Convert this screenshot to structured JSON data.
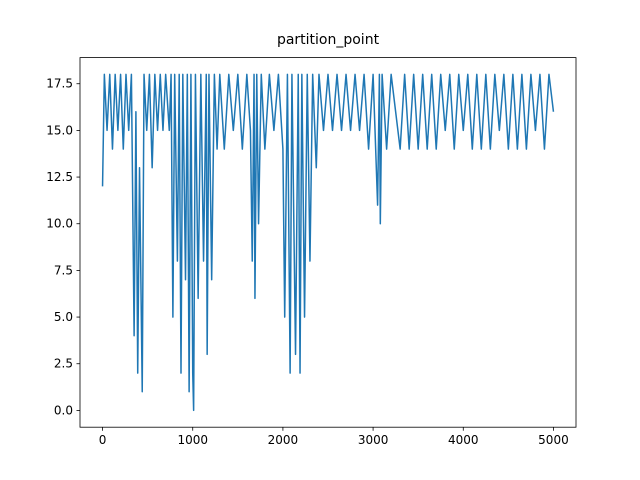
{
  "chart_data": {
    "type": "line",
    "title": "partition_point",
    "x": [
      0,
      20,
      50,
      80,
      110,
      140,
      170,
      200,
      230,
      260,
      290,
      320,
      350,
      370,
      390,
      410,
      440,
      460,
      490,
      520,
      550,
      580,
      610,
      640,
      670,
      700,
      740,
      760,
      780,
      800,
      830,
      850,
      870,
      890,
      920,
      940,
      960,
      980,
      1000,
      1010,
      1030,
      1060,
      1090,
      1120,
      1150,
      1160,
      1180,
      1210,
      1240,
      1270,
      1300,
      1350,
      1400,
      1450,
      1500,
      1550,
      1600,
      1640,
      1660,
      1680,
      1690,
      1710,
      1730,
      1760,
      1800,
      1850,
      1900,
      1950,
      2000,
      2020,
      2050,
      2080,
      2100,
      2140,
      2170,
      2190,
      2210,
      2240,
      2270,
      2300,
      2330,
      2370,
      2400,
      2450,
      2500,
      2550,
      2600,
      2650,
      2700,
      2750,
      2800,
      2850,
      2900,
      2950,
      3000,
      3050,
      3070,
      3080,
      3100,
      3150,
      3200,
      3300,
      3350,
      3400,
      3450,
      3500,
      3550,
      3600,
      3650,
      3700,
      3750,
      3800,
      3850,
      3900,
      3950,
      4000,
      4050,
      4100,
      4150,
      4200,
      4250,
      4300,
      4350,
      4400,
      4450,
      4500,
      4550,
      4600,
      4650,
      4700,
      4750,
      4800,
      4850,
      4900,
      4950,
      5000
    ],
    "series": [
      {
        "color": "#1f77b4",
        "values": [
          12,
          18,
          15,
          18,
          14,
          18,
          15,
          18,
          14,
          18,
          15,
          18,
          4,
          16,
          2,
          13,
          1,
          18,
          15,
          18,
          13,
          18,
          15,
          18,
          15,
          18,
          15,
          18,
          5,
          18,
          8,
          18,
          2,
          18,
          7,
          18,
          1,
          18,
          2,
          0,
          18,
          6,
          18,
          8,
          18,
          3,
          18,
          7,
          18,
          14,
          18,
          14,
          18,
          15,
          18,
          14,
          18,
          15,
          8,
          18,
          6,
          18,
          10,
          18,
          14,
          18,
          15,
          18,
          14,
          5,
          18,
          2,
          18,
          3,
          18,
          2,
          18,
          5,
          18,
          8,
          18,
          13,
          18,
          15,
          18,
          15,
          18,
          15,
          18,
          15,
          18,
          15,
          18,
          14,
          18,
          11,
          18,
          10,
          18,
          14,
          18,
          14,
          18,
          14,
          18,
          14,
          18,
          14,
          18,
          14,
          18,
          15,
          18,
          14,
          18,
          15,
          18,
          14,
          18,
          14,
          18,
          14,
          18,
          15,
          18,
          14,
          18,
          14,
          18,
          14,
          18,
          15,
          18,
          14,
          18,
          16
        ]
      }
    ],
    "xlim": [
      -250,
      5250
    ],
    "ylim": [
      -0.9,
      18.9
    ],
    "xticks": [
      0,
      1000,
      2000,
      3000,
      4000,
      5000
    ],
    "yticks": [
      {
        "value": 0,
        "label": "0.0"
      },
      {
        "value": 2.5,
        "label": "2.5"
      },
      {
        "value": 5,
        "label": "5.0"
      },
      {
        "value": 7.5,
        "label": "7.5"
      },
      {
        "value": 10,
        "label": "10.0"
      },
      {
        "value": 12.5,
        "label": "12.5"
      },
      {
        "value": 15,
        "label": "15.0"
      },
      {
        "value": 17.5,
        "label": "17.5"
      }
    ]
  }
}
